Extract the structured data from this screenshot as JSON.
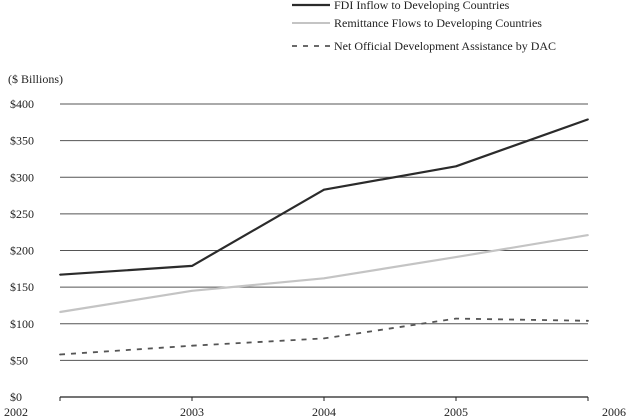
{
  "chart_data": {
    "type": "line",
    "ylabel": "($ Billions)",
    "x": [
      2002,
      2003,
      2004,
      2005,
      2006
    ],
    "x_tick_labels": [
      "2002",
      "2003",
      "2004",
      "2005",
      "2006"
    ],
    "ylim": [
      0,
      400
    ],
    "y_tick_labels": [
      "$0",
      "$50",
      "$100",
      "$150",
      "$200",
      "$250",
      "$300",
      "$350",
      "$400"
    ],
    "grid": "horizontal",
    "legend_placement": "top-right",
    "series": [
      {
        "name": "FDI Inflow to Developing Countries",
        "values": [
          167,
          179,
          283,
          315,
          379
        ],
        "color": "#2b2b2b",
        "style": "solid"
      },
      {
        "name": "Remittance Flows to Developing Countries",
        "values": [
          116,
          145,
          162,
          191,
          221
        ],
        "color": "#c4c4c4",
        "style": "solid"
      },
      {
        "name": "Net Official Development Assistance by DAC",
        "values": [
          58,
          70,
          80,
          107,
          104
        ],
        "color": "#555555",
        "style": "dashed"
      }
    ]
  }
}
